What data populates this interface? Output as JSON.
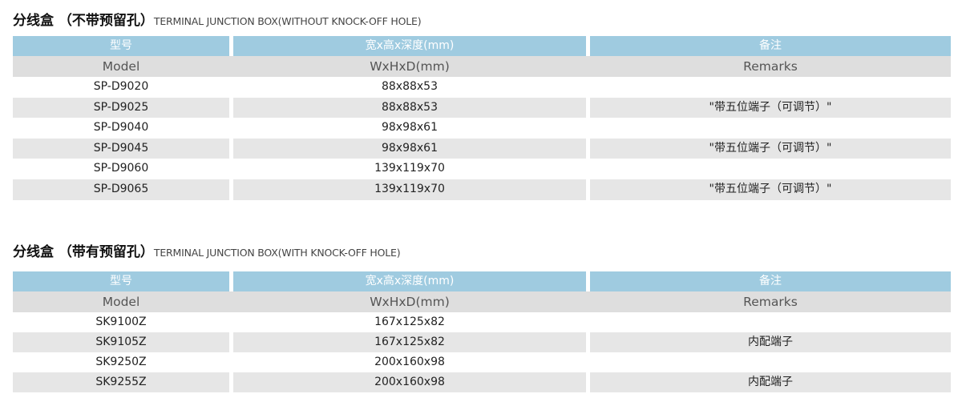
{
  "section1": {
    "title_cn": "分线盒 （不带预留孔）",
    "title_en": "TERMINAL JUNCTION BOX(WITHOUT KNOCK-OFF HOLE)",
    "header_cn": [
      "型号",
      "宽x高x深度(mm)",
      "备注"
    ],
    "header_en": [
      "Model",
      "WxHxD(mm)",
      "Remarks"
    ],
    "rows": [
      {
        "model": "SP-D9020",
        "size": "88x88x53",
        "remarks": ""
      },
      {
        "model": "SP-D9025",
        "size": "88x88x53",
        "remarks": "\"带五位端子（可调节）\""
      },
      {
        "model": "SP-D9040",
        "size": "98x98x61",
        "remarks": ""
      },
      {
        "model": "SP-D9045",
        "size": "98x98x61",
        "remarks": "\"带五位端子（可调节）\""
      },
      {
        "model": "SP-D9060",
        "size": "139x119x70",
        "remarks": ""
      },
      {
        "model": "SP-D9065",
        "size": "139x119x70",
        "remarks": "\"带五位端子（可调节）\""
      }
    ]
  },
  "section2": {
    "title_cn": "分线盒 （带有预留孔）",
    "title_en": "TERMINAL JUNCTION BOX(WITH KNOCK-OFF HOLE)",
    "header_cn": [
      "型号",
      "宽x高x深度(mm)",
      "备注"
    ],
    "header_en": [
      "Model",
      "WxHxD(mm)",
      "Remarks"
    ],
    "rows": [
      {
        "model": "SK9100Z",
        "size": "167x125x82",
        "remarks": ""
      },
      {
        "model": "SK9105Z",
        "size": "167x125x82",
        "remarks": "内配端子"
      },
      {
        "model": "SK9250Z",
        "size": "200x160x98",
        "remarks": ""
      },
      {
        "model": "SK9255Z",
        "size": "200x160x98",
        "remarks": "内配端子"
      }
    ]
  },
  "colors": {
    "header_blue": "#9fcbe0",
    "header_grey": "#dedede",
    "row_alt": "#e6e6e6"
  }
}
